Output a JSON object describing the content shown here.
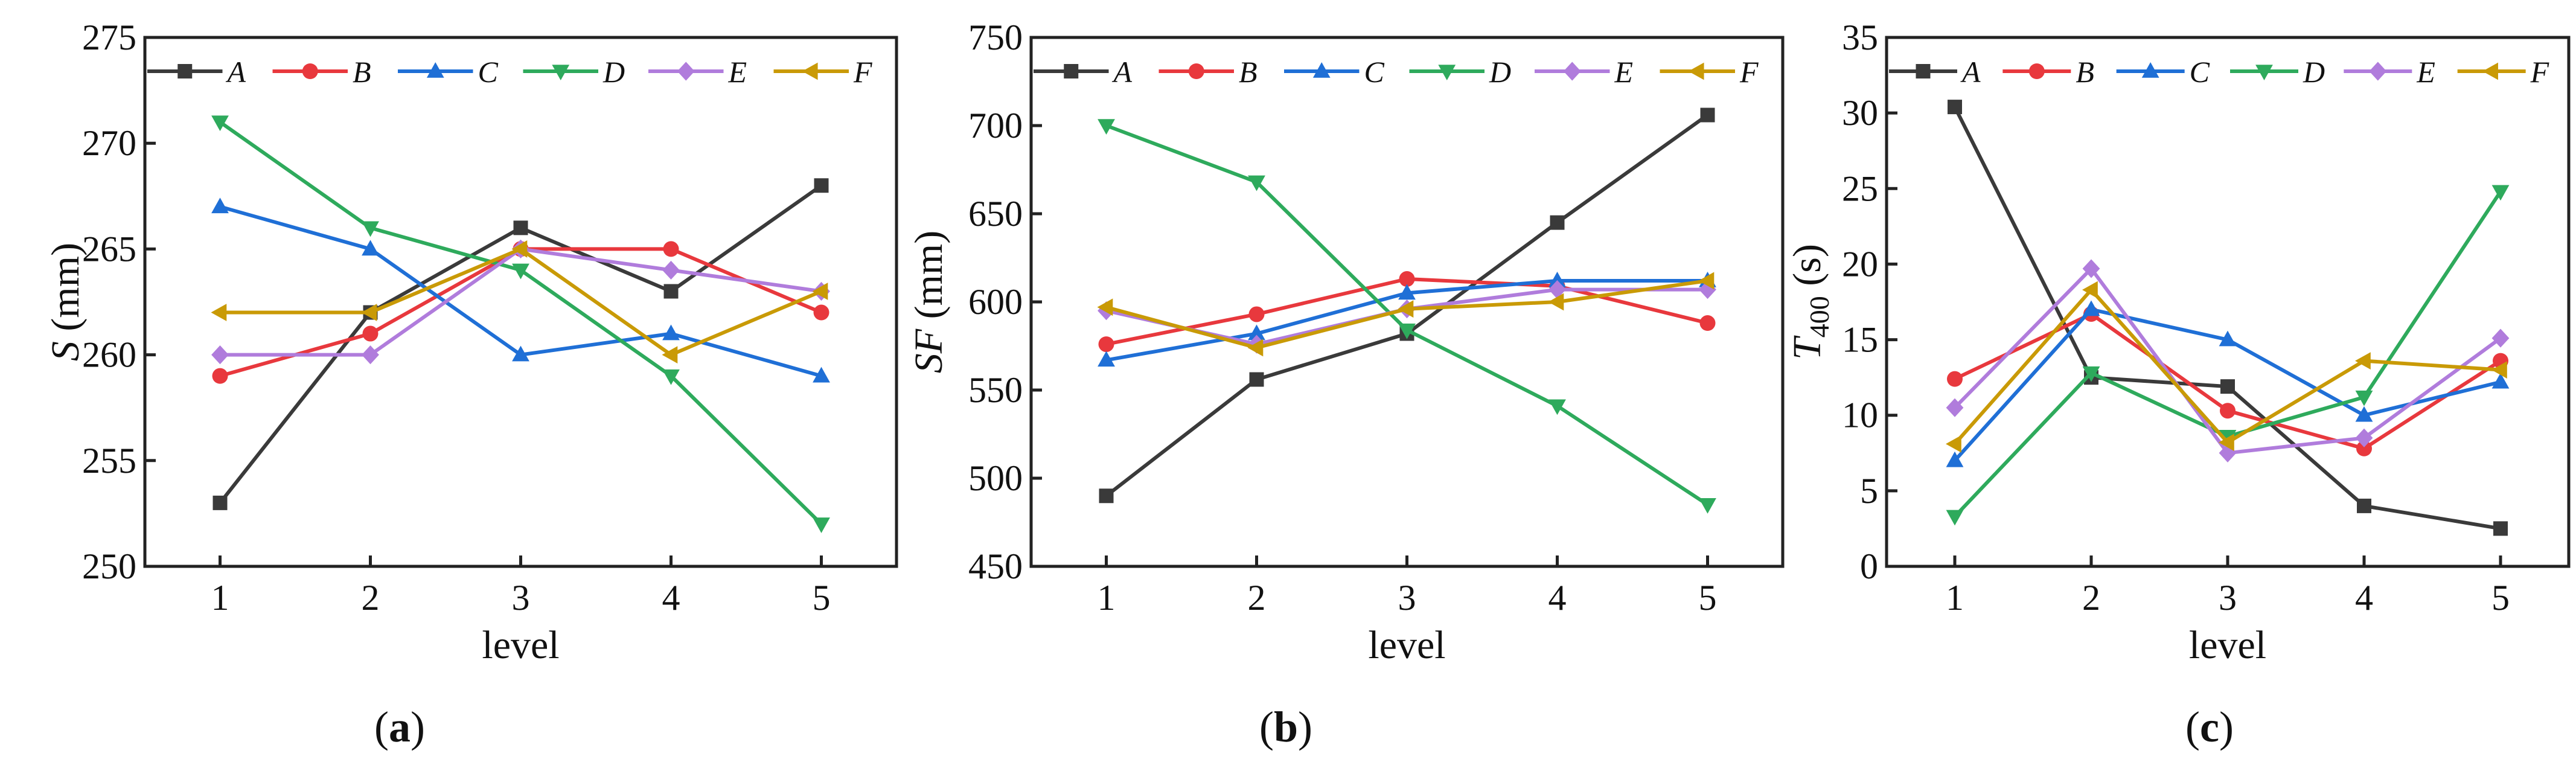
{
  "series_style": {
    "A": {
      "color": "#3a3a3a",
      "marker": "square"
    },
    "B": {
      "color": "#e8383d",
      "marker": "circle"
    },
    "C": {
      "color": "#1f6fd6",
      "marker": "triangle-up"
    },
    "D": {
      "color": "#2eaa5c",
      "marker": "triangle-down"
    },
    "E": {
      "color": "#b07cdc",
      "marker": "diamond"
    },
    "F": {
      "color": "#c99a06",
      "marker": "triangle-left"
    }
  },
  "chart_data": [
    {
      "type": "line",
      "panel_label": "a",
      "xlabel": "level",
      "ylabel": {
        "italic": "S",
        "rest": " (mm)"
      },
      "x": [
        1,
        2,
        3,
        4,
        5
      ],
      "xlim": [
        0.5,
        5.5
      ],
      "ylim": [
        250,
        275
      ],
      "yticks": [
        250,
        255,
        260,
        265,
        270,
        275
      ],
      "legend_position": "top",
      "series": [
        {
          "name": "A",
          "values": [
            253,
            262,
            266,
            263,
            268
          ]
        },
        {
          "name": "B",
          "values": [
            259,
            261,
            265,
            265,
            262
          ]
        },
        {
          "name": "C",
          "values": [
            267,
            265,
            260,
            261,
            259
          ]
        },
        {
          "name": "D",
          "values": [
            271,
            266,
            264,
            259,
            252
          ]
        },
        {
          "name": "E",
          "values": [
            260,
            260,
            265,
            264,
            263
          ]
        },
        {
          "name": "F",
          "values": [
            262,
            262,
            265,
            260,
            263
          ]
        }
      ]
    },
    {
      "type": "line",
      "panel_label": "b",
      "xlabel": "level",
      "ylabel": {
        "italic": "SF",
        "rest": " (mm)"
      },
      "x": [
        1,
        2,
        3,
        4,
        5
      ],
      "xlim": [
        0.5,
        5.5
      ],
      "ylim": [
        450,
        750
      ],
      "yticks": [
        450,
        500,
        550,
        600,
        650,
        700,
        750
      ],
      "legend_position": "top",
      "series": [
        {
          "name": "A",
          "values": [
            490,
            556,
            582,
            645,
            706
          ]
        },
        {
          "name": "B",
          "values": [
            576,
            593,
            613,
            609,
            588
          ]
        },
        {
          "name": "C",
          "values": [
            567,
            582,
            605,
            612,
            612
          ]
        },
        {
          "name": "D",
          "values": [
            700,
            668,
            584,
            541,
            485
          ]
        },
        {
          "name": "E",
          "values": [
            595,
            576,
            596,
            607,
            607
          ]
        },
        {
          "name": "F",
          "values": [
            597,
            574,
            596,
            600,
            612
          ]
        }
      ]
    },
    {
      "type": "line",
      "panel_label": "c",
      "xlabel": "level",
      "ylabel": {
        "italic": "T",
        "sub": "400",
        "rest": " (s)"
      },
      "x": [
        1,
        2,
        3,
        4,
        5
      ],
      "xlim": [
        0.5,
        5.5
      ],
      "ylim": [
        0,
        35
      ],
      "yticks": [
        0,
        5,
        10,
        15,
        20,
        25,
        30,
        35
      ],
      "legend_position": "top",
      "series": [
        {
          "name": "A",
          "values": [
            30.4,
            12.5,
            11.9,
            4.0,
            2.5
          ]
        },
        {
          "name": "B",
          "values": [
            12.4,
            16.7,
            10.3,
            7.8,
            13.6
          ]
        },
        {
          "name": "C",
          "values": [
            7.0,
            17.0,
            15.0,
            10.0,
            12.2
          ]
        },
        {
          "name": "D",
          "values": [
            3.3,
            12.8,
            8.6,
            11.2,
            24.8
          ]
        },
        {
          "name": "E",
          "values": [
            10.5,
            19.7,
            7.5,
            8.5,
            15.1
          ]
        },
        {
          "name": "F",
          "values": [
            8.1,
            18.3,
            8.2,
            13.6,
            13.0
          ]
        }
      ]
    }
  ]
}
